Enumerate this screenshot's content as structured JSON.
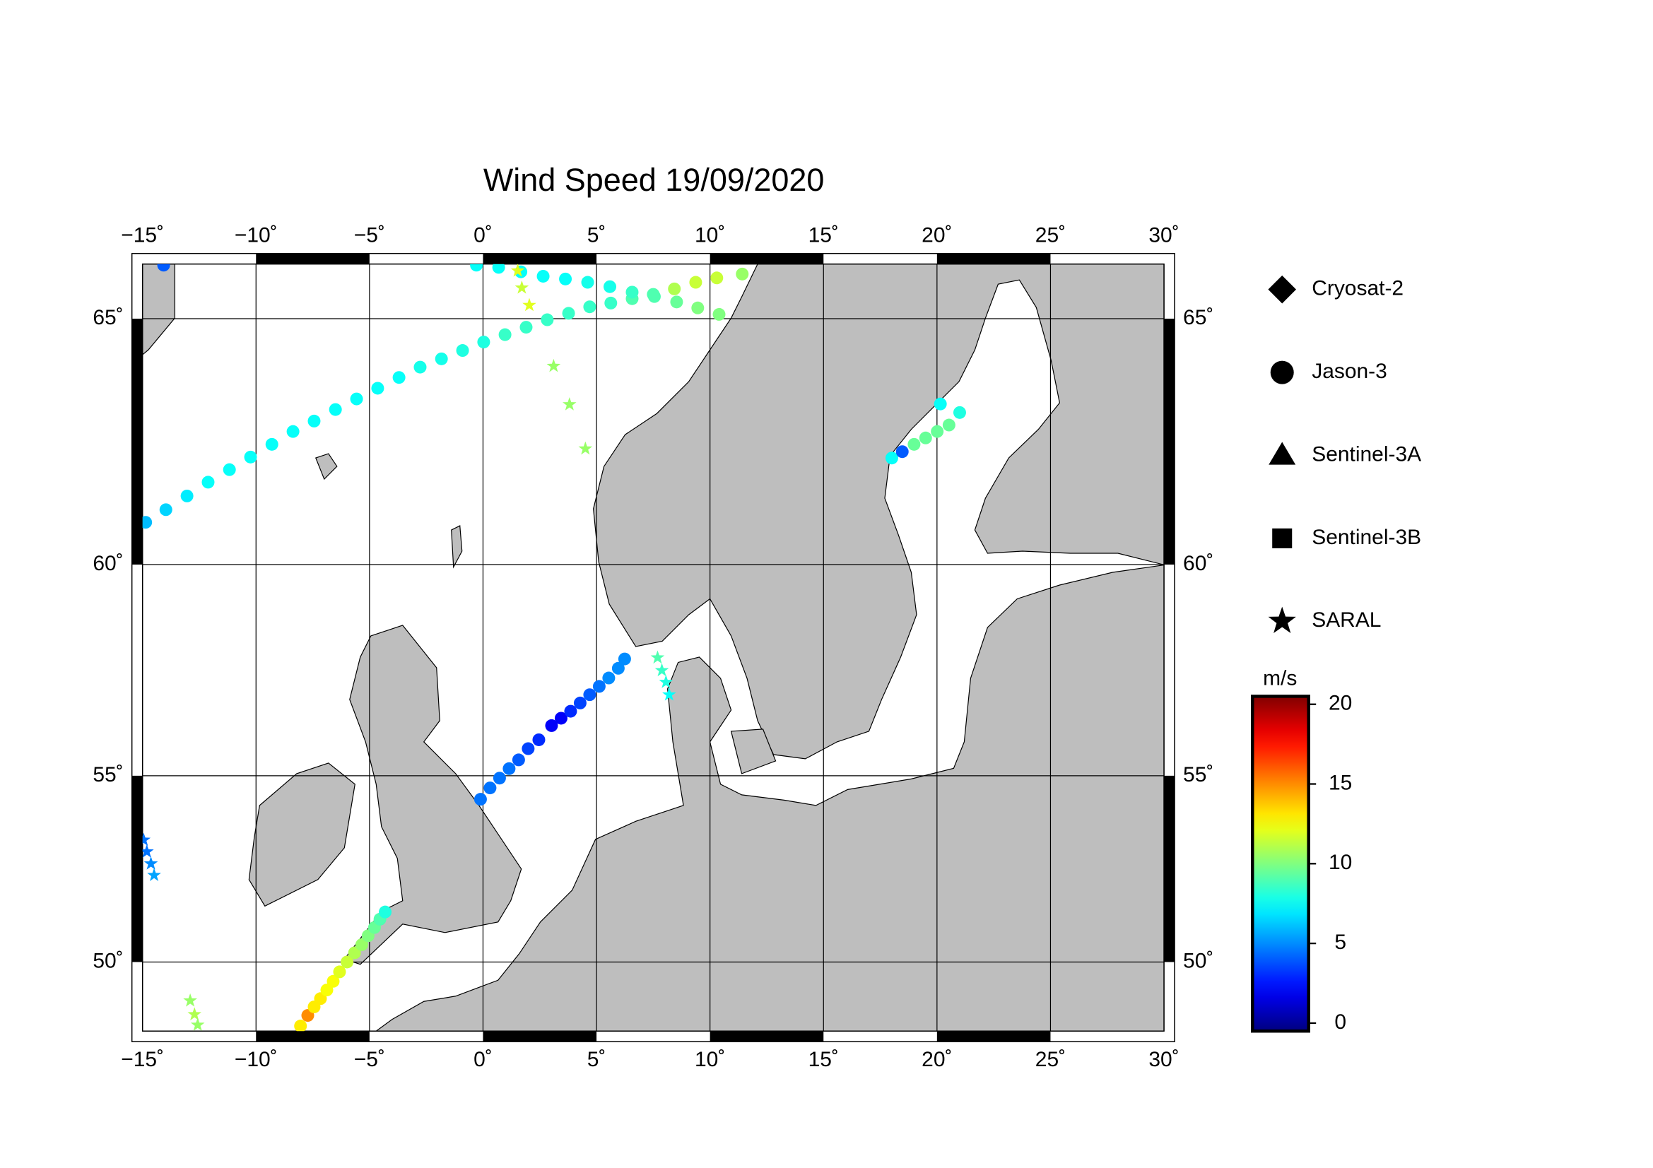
{
  "chart_data": {
    "type": "scatter",
    "title": "Wind Speed 19/09/2020",
    "xlim": [
      -15,
      30
    ],
    "ylim": [
      48,
      66
    ],
    "yscale": "mercator",
    "grid": true,
    "xticks": [
      {
        "value": -15,
        "label": "−15˚"
      },
      {
        "value": -10,
        "label": "−10˚"
      },
      {
        "value": -5,
        "label": "−5˚"
      },
      {
        "value": 0,
        "label": "0˚"
      },
      {
        "value": 5,
        "label": "5˚"
      },
      {
        "value": 10,
        "label": "10˚"
      },
      {
        "value": 15,
        "label": "15˚"
      },
      {
        "value": 20,
        "label": "20˚"
      },
      {
        "value": 25,
        "label": "25˚"
      },
      {
        "value": 30,
        "label": "30˚"
      }
    ],
    "yticks": [
      {
        "value": 50,
        "label": "50˚"
      },
      {
        "value": 55,
        "label": "55˚"
      },
      {
        "value": 60,
        "label": "60˚"
      },
      {
        "value": 65,
        "label": "65˚"
      }
    ],
    "colorbar": {
      "title": "m/s",
      "colormap": "jet",
      "clim": [
        -0.5,
        20.5
      ],
      "ticks": [
        0,
        5,
        10,
        15,
        20
      ]
    },
    "legend": "right",
    "series": [
      {
        "name": "Cryosat-2",
        "marker": "diamond",
        "x": [],
        "y": [],
        "values": []
      },
      {
        "name": "Jason-3",
        "marker": "circle",
        "x": [
          -14.86,
          -13.97,
          -13.04,
          -12.11,
          -11.17,
          -10.24,
          -9.3,
          -8.37,
          -7.44,
          -6.5,
          -5.57,
          -4.64,
          -3.7,
          -2.77,
          -1.83,
          -0.9,
          0.03,
          0.97,
          1.9,
          2.83,
          3.77,
          4.7,
          5.63,
          6.57,
          7.5,
          8.43,
          9.37,
          10.3,
          11.42,
          -0.29,
          0.69,
          1.67,
          2.65,
          3.63,
          4.61,
          5.59,
          6.57,
          7.55,
          8.53,
          9.46,
          10.4,
          -0.11,
          0.31,
          0.73,
          1.15,
          1.57,
          1.99,
          2.46,
          3.02,
          3.44,
          3.86,
          4.28,
          4.7,
          5.12,
          5.54,
          5.96,
          6.24,
          18.01,
          18.47,
          18.99,
          19.5,
          20.01,
          20.53,
          21.0,
          20.15,
          -8.04,
          -7.72,
          -7.44,
          -7.16,
          -6.88,
          -6.6,
          -6.32,
          -5.99,
          -5.66,
          -5.34,
          -5.06,
          -4.78,
          -4.54,
          -4.31,
          -14.07
        ],
        "y": [
          60.92,
          61.19,
          61.48,
          61.77,
          62.03,
          62.29,
          62.55,
          62.81,
          63.02,
          63.25,
          63.46,
          63.67,
          63.88,
          64.08,
          64.24,
          64.4,
          64.56,
          64.7,
          64.84,
          64.98,
          65.1,
          65.22,
          65.29,
          65.37,
          65.45,
          65.55,
          65.67,
          65.75,
          65.82,
          65.98,
          65.94,
          65.86,
          65.78,
          65.73,
          65.67,
          65.59,
          65.49,
          65.41,
          65.31,
          65.2,
          65.08,
          54.4,
          54.69,
          54.94,
          55.18,
          55.4,
          55.68,
          55.9,
          56.25,
          56.43,
          56.6,
          56.8,
          57.0,
          57.2,
          57.4,
          57.63,
          57.85,
          62.27,
          62.4,
          62.55,
          62.68,
          62.81,
          62.94,
          63.19,
          63.36,
          48.15,
          48.46,
          48.71,
          48.95,
          49.2,
          49.45,
          49.72,
          50.0,
          50.26,
          50.49,
          50.74,
          50.97,
          51.2,
          51.4,
          65.98
        ],
        "values": [
          6,
          6.5,
          7,
          7.5,
          7.5,
          7.5,
          7.5,
          7.5,
          7.5,
          7.5,
          7.5,
          7.5,
          7.5,
          7.8,
          7.8,
          8,
          8,
          8.5,
          8.5,
          8.5,
          8.5,
          8.5,
          8.5,
          9,
          9,
          11,
          11.5,
          11.5,
          10.5,
          7.5,
          7.5,
          7.5,
          7.5,
          7.5,
          7.8,
          7.8,
          8.5,
          9,
          9.5,
          10,
          10,
          4.5,
          4.5,
          4.5,
          4.5,
          4,
          3.5,
          3,
          2,
          2,
          3,
          3.5,
          4,
          4.5,
          5,
          5,
          5,
          7.5,
          4,
          9.5,
          9.5,
          9.5,
          9.5,
          8,
          7.5,
          13,
          15,
          13,
          13,
          12.5,
          12.5,
          12,
          11.5,
          11,
          10.5,
          10,
          9.5,
          9,
          8,
          4
        ]
      },
      {
        "name": "Sentinel-3A",
        "marker": "triangle",
        "x": [],
        "y": [],
        "values": []
      },
      {
        "name": "Sentinel-3B",
        "marker": "square",
        "x": [],
        "y": [],
        "values": []
      },
      {
        "name": "SARAL",
        "marker": "star",
        "x": [
          1.53,
          1.71,
          2.04,
          3.11,
          3.81,
          4.51,
          7.69,
          7.88,
          8.06,
          8.2,
          -14.95,
          -14.81,
          -14.63,
          -14.49,
          -12.9,
          -12.71,
          -12.57
        ],
        "y": [
          65.88,
          65.57,
          65.25,
          64.1,
          63.35,
          62.46,
          57.88,
          57.58,
          57.3,
          57.0,
          53.34,
          53.03,
          52.71,
          52.4,
          48.89,
          48.49,
          48.18
        ],
        "values": [
          12,
          11.5,
          12,
          10.5,
          10.5,
          10.5,
          9,
          8.5,
          8,
          7.5,
          4.5,
          4.5,
          5,
          5.5,
          10.5,
          11,
          10.5
        ]
      }
    ]
  }
}
